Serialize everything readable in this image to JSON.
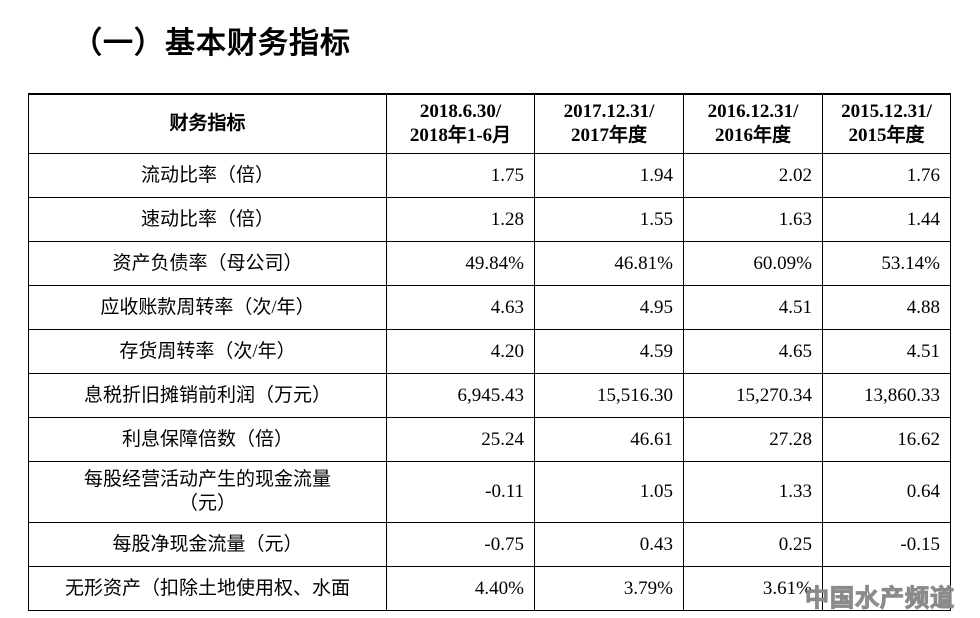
{
  "heading": "（一）基本财务指标",
  "table": {
    "header": [
      [
        "财务指标"
      ],
      [
        "2018.6.30/",
        "2018年1-6月"
      ],
      [
        "2017.12.31/",
        "2017年度"
      ],
      [
        "2016.12.31/",
        "2016年度"
      ],
      [
        "2015.12.31/",
        "2015年度"
      ]
    ],
    "rows": [
      [
        [
          "流动比率（倍）"
        ],
        "1.75",
        "1.94",
        "2.02",
        "1.76"
      ],
      [
        [
          "速动比率（倍）"
        ],
        "1.28",
        "1.55",
        "1.63",
        "1.44"
      ],
      [
        [
          "资产负债率（母公司）"
        ],
        "49.84%",
        "46.81%",
        "60.09%",
        "53.14%"
      ],
      [
        [
          "应收账款周转率（次/年）"
        ],
        "4.63",
        "4.95",
        "4.51",
        "4.88"
      ],
      [
        [
          "存货周转率（次/年）"
        ],
        "4.20",
        "4.59",
        "4.65",
        "4.51"
      ],
      [
        [
          "息税折旧摊销前利润（万元）"
        ],
        "6,945.43",
        "15,516.30",
        "15,270.34",
        "13,860.33"
      ],
      [
        [
          "利息保障倍数（倍）"
        ],
        "25.24",
        "46.61",
        "27.28",
        "16.62"
      ],
      [
        [
          "每股经营活动产生的现金流量",
          "（元）"
        ],
        "-0.11",
        "1.05",
        "1.33",
        "0.64"
      ],
      [
        [
          "每股净现金流量（元）"
        ],
        "-0.75",
        "0.43",
        "0.25",
        "-0.15"
      ],
      [
        [
          "无形资产（扣除土地使用权、水面"
        ],
        "4.40%",
        "3.79%",
        "3.61%"
      ]
    ]
  },
  "watermark": "中国水产频道"
}
